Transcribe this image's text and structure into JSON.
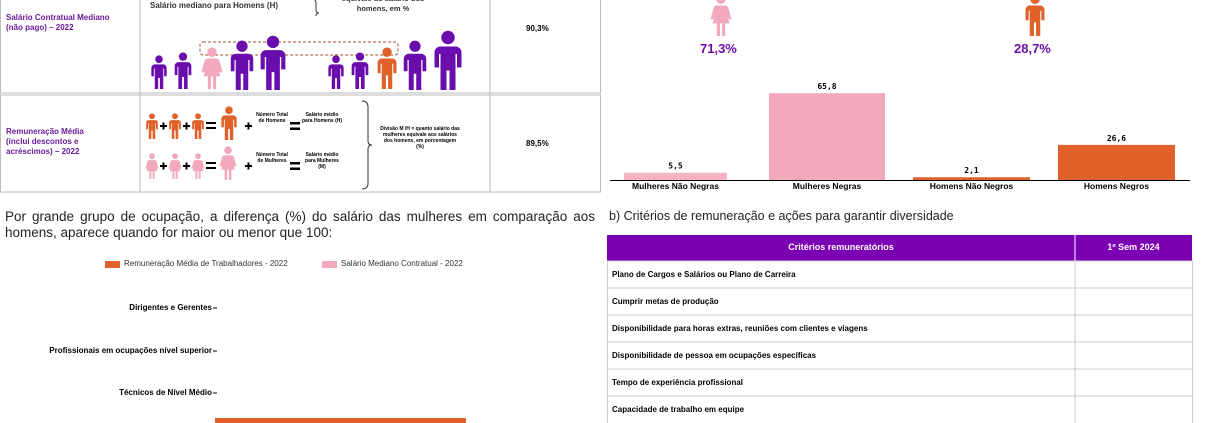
{
  "wage_table": {
    "rows": [
      {
        "label": "Salário Contratual Mediano (não pago) – 2022",
        "texts": [
          "Salário mediano para Homens (H)",
          "equivale ao salário dos homens, em %"
        ],
        "value": "90,3%"
      },
      {
        "label": "Remuneração Média (inclui descontos e acréscimos) – 2022",
        "texts": [
          "Número Total de Homens",
          "Salário médio para Homens (H)",
          "Divisão M /H = quanto salário das mulheres equivale aos salários dos homens, em porcentagem (%)",
          "Número Total de Mulheres",
          "Salário médio para Mulheres (M)"
        ],
        "value": "89,5%"
      }
    ]
  },
  "shares": [
    "71,3%",
    "28,7%"
  ],
  "chart_data": {
    "type": "bar",
    "categories": [
      "Mulheres Não Negras",
      "Mulheres Negras",
      "Homens Não Negros",
      "Homens Negros"
    ],
    "values": [
      5.5,
      65.8,
      2.1,
      26.6
    ],
    "value_labels": [
      "5,5",
      "65,8",
      "2,1",
      "26,6"
    ],
    "colors": [
      "#f4b3c2",
      "#f2a9bb",
      "#e0622a",
      "#e0622a"
    ]
  },
  "occupation": {
    "intro": "Por grande grupo de ocupação, a diferença (%) do salário das mulheres em comparação aos homens, aparece quando for maior ou menor que 100:",
    "legend": [
      {
        "name": "Remuneração Média de Trabalhadores - 2022",
        "color": "#e0622a"
      },
      {
        "name": "Salário Mediano Contratual - 2022",
        "color": "#f2a9bb"
      }
    ],
    "categories": [
      "Dirigentes e Gerentes",
      "Profissionais em ocupações nível superior",
      "Técnicos de Nível Médio"
    ]
  },
  "criteria": {
    "title": "b) Critérios de remuneração e ações para garantir diversidade",
    "header": [
      "Critérios remuneratórios",
      "1º Sem 2024"
    ],
    "rows": [
      "Plano de Cargos e Salários ou Plano de Carreira",
      "Cumprir metas de produção",
      "Disponibilidade para horas extras, reuniões com clientes e viagens",
      "Disponibilidade de pessoa em ocupações específicas",
      "Tempo de experiência profissional",
      "Capacidade de trabalho em equipe"
    ]
  }
}
